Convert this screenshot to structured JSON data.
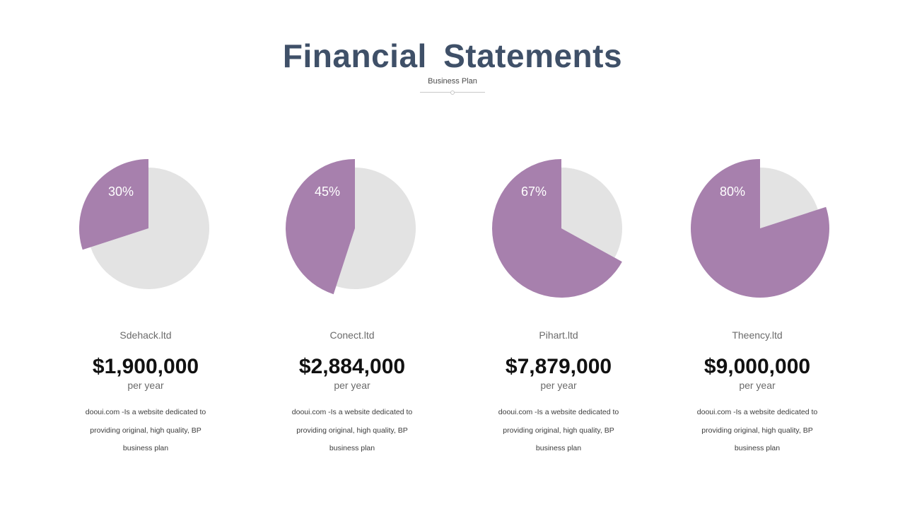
{
  "header": {
    "title": "Financial  Statements",
    "subtitle": "Business Plan"
  },
  "colors": {
    "accent": "#a780ad",
    "remainder": "#e3e3e3",
    "title": "#3f5068"
  },
  "chart_data": [
    {
      "type": "pie",
      "values": [
        30,
        70
      ],
      "label": "30%",
      "company": "Sdehack.ltd",
      "amount": "$1,900,000",
      "period": "per year",
      "description": [
        "dooui.com -Is a website dedicated to",
        "providing original, high quality, BP",
        "business plan"
      ]
    },
    {
      "type": "pie",
      "values": [
        45,
        55
      ],
      "label": "45%",
      "company": "Conect.ltd",
      "amount": "$2,884,000",
      "period": "per year",
      "description": [
        "dooui.com -Is a website dedicated to",
        "providing original, high quality, BP",
        "business plan"
      ]
    },
    {
      "type": "pie",
      "values": [
        67,
        33
      ],
      "label": "67%",
      "company": "Pihart.ltd",
      "amount": "$7,879,000",
      "period": "per year",
      "description": [
        "dooui.com -Is a website dedicated to",
        "providing original, high quality, BP",
        "business plan"
      ]
    },
    {
      "type": "pie",
      "values": [
        80,
        20
      ],
      "label": "80%",
      "company": "Theency.ltd",
      "amount": "$9,000,000",
      "period": "per year",
      "description": [
        "dooui.com -Is a website dedicated to",
        "providing original, high quality, BP",
        "business plan"
      ]
    }
  ]
}
